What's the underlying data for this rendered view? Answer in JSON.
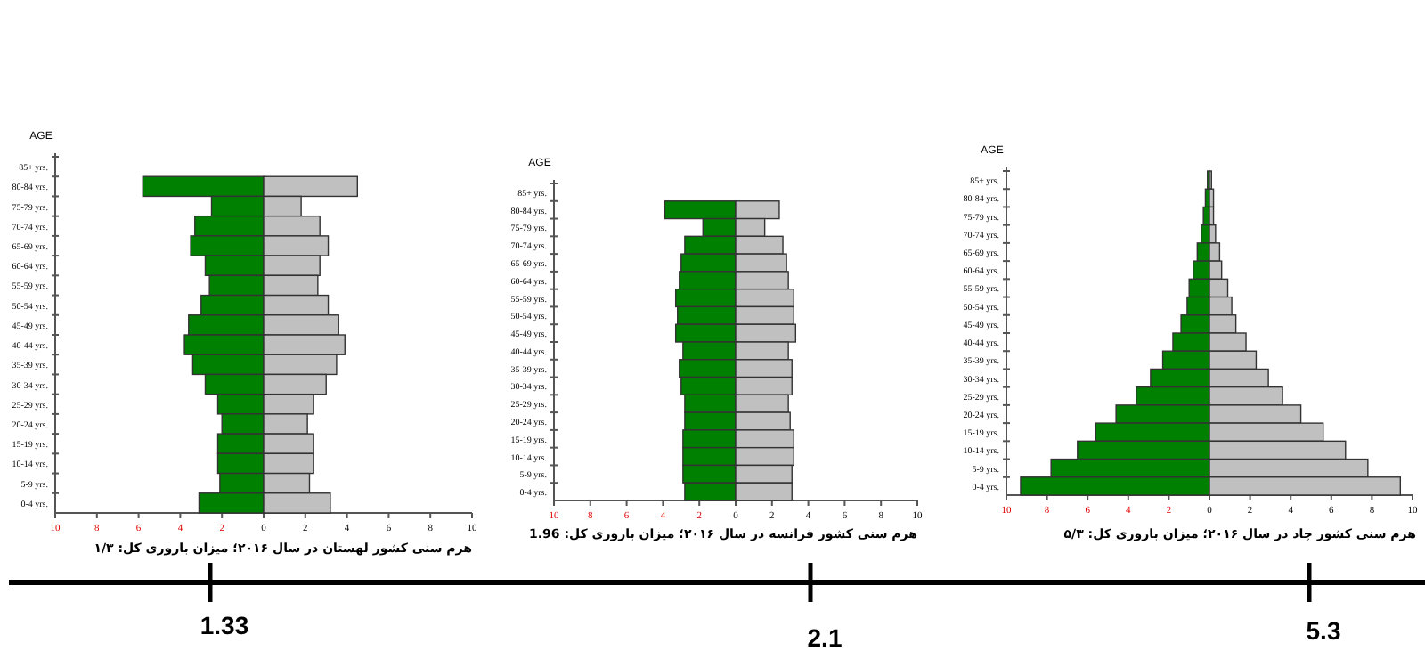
{
  "chart_data": [
    {
      "type": "bar",
      "orientation": "horizontal",
      "stacked": true,
      "title": "هرم سنی کشور لهستان در سال ۲۰۱۶؛ میزان باروری کل: ۱/۳",
      "ylabel": "AGE",
      "categories": [
        "85+ yrs.",
        "80-84 yrs.",
        "75-79 yrs.",
        "70-74 yrs.",
        "65-69 yrs.",
        "60-64 yrs.",
        "55-59 yrs.",
        "50-54 yrs.",
        "45-49 yrs.",
        "40-44 yrs.",
        "35-39 yrs.",
        "30-34 yrs.",
        "25-29 yrs.",
        "20-24 yrs.",
        "15-19 yrs.",
        "10-14 yrs.",
        "5-9 yrs.",
        "0-4 yrs."
      ],
      "series": [
        {
          "color": "#008000",
          "values": [
            null,
            -5.8,
            -2.5,
            -3.3,
            -3.5,
            -2.8,
            -2.6,
            -3.0,
            -3.6,
            -3.8,
            -3.4,
            -2.8,
            -2.2,
            -2.0,
            -2.2,
            -2.2,
            -2.1,
            -3.1
          ]
        },
        {
          "color": "#c0c0c0",
          "values": [
            null,
            4.5,
            1.8,
            2.7,
            3.1,
            2.7,
            2.6,
            3.1,
            3.6,
            3.9,
            3.5,
            3.0,
            2.4,
            2.1,
            2.4,
            2.4,
            2.2,
            3.2
          ]
        }
      ],
      "xlim": [
        -10,
        10
      ],
      "xticks": [
        {
          "value": -10,
          "label": "10"
        },
        {
          "value": -8,
          "label": "8"
        },
        {
          "value": -6,
          "label": "6"
        },
        {
          "value": -4,
          "label": "4"
        },
        {
          "value": -2,
          "label": "2"
        },
        0,
        2,
        4,
        6,
        8,
        10
      ]
    },
    {
      "type": "bar",
      "orientation": "horizontal",
      "stacked": true,
      "title": "هرم سنی کشور فرانسه در سال ۲۰۱۶؛ میزان باروری کل: 1.96",
      "ylabel": "AGE",
      "categories": [
        "85+ yrs.",
        "80-84 yrs.",
        "75-79 yrs.",
        "70-74 yrs.",
        "65-69 yrs.",
        "60-64 yrs.",
        "55-59 yrs.",
        "50-54 yrs.",
        "45-49 yrs.",
        "40-44 yrs.",
        "35-39 yrs.",
        "30-34 yrs.",
        "25-29 yrs.",
        "20-24 yrs.",
        "15-19 yrs.",
        "10-14 yrs.",
        "5-9 yrs.",
        "0-4 yrs."
      ],
      "series": [
        {
          "color": "#008000",
          "values": [
            null,
            -3.9,
            -1.8,
            -2.8,
            -3.0,
            -3.1,
            -3.3,
            -3.2,
            -3.3,
            -2.9,
            -3.1,
            -3.0,
            -2.8,
            -2.8,
            -2.9,
            -2.9,
            -2.9,
            -2.8
          ]
        },
        {
          "color": "#c0c0c0",
          "values": [
            null,
            2.4,
            1.6,
            2.6,
            2.8,
            2.9,
            3.2,
            3.2,
            3.3,
            2.9,
            3.1,
            3.1,
            2.9,
            3.0,
            3.2,
            3.2,
            3.1,
            3.1
          ]
        }
      ],
      "xlim": [
        -10,
        10
      ],
      "xticks": [
        {
          "value": -10,
          "label": "10"
        },
        {
          "value": -8,
          "label": "8"
        },
        {
          "value": -6,
          "label": "6"
        },
        {
          "value": -4,
          "label": "4"
        },
        {
          "value": -2,
          "label": "2"
        },
        0,
        2,
        4,
        6,
        8,
        10
      ]
    },
    {
      "type": "bar",
      "orientation": "horizontal",
      "stacked": true,
      "title": "هرم سنی کشور چاد در سال ۲۰۱۶؛ میزان باروری کل: ۵/۳",
      "ylabel": "AGE",
      "categories": [
        "85+ yrs.",
        "80-84 yrs.",
        "75-79 yrs.",
        "70-74 yrs.",
        "65-69 yrs.",
        "60-64 yrs.",
        "55-59 yrs.",
        "50-54 yrs.",
        "45-49 yrs.",
        "40-44 yrs.",
        "35-39 yrs.",
        "30-34 yrs.",
        "25-29 yrs.",
        "20-24 yrs.",
        "15-19 yrs.",
        "10-14 yrs.",
        "5-9 yrs.",
        "0-4 yrs."
      ],
      "series": [
        {
          "color": "#008000",
          "values": [
            -0.1,
            -0.2,
            -0.3,
            -0.4,
            -0.6,
            -0.8,
            -1.0,
            -1.1,
            -1.4,
            -1.8,
            -2.3,
            -2.9,
            -3.6,
            -4.6,
            -5.6,
            -6.5,
            -7.8,
            -9.3
          ]
        },
        {
          "color": "#c0c0c0",
          "values": [
            0.1,
            0.2,
            0.2,
            0.3,
            0.5,
            0.6,
            0.9,
            1.1,
            1.3,
            1.8,
            2.3,
            2.9,
            3.6,
            4.5,
            5.6,
            6.7,
            7.8,
            9.4
          ]
        }
      ],
      "xlim": [
        -10,
        10
      ],
      "xticks": [
        {
          "value": -10,
          "label": "10"
        },
        {
          "value": -8,
          "label": "8"
        },
        {
          "value": -6,
          "label": "6"
        },
        {
          "value": -4,
          "label": "4"
        },
        {
          "value": -2,
          "label": "2"
        },
        0,
        2,
        4,
        6,
        8,
        10
      ]
    },
    {
      "type": "other",
      "annotations": [
        "1.33",
        "2.1",
        "5.3"
      ]
    }
  ]
}
